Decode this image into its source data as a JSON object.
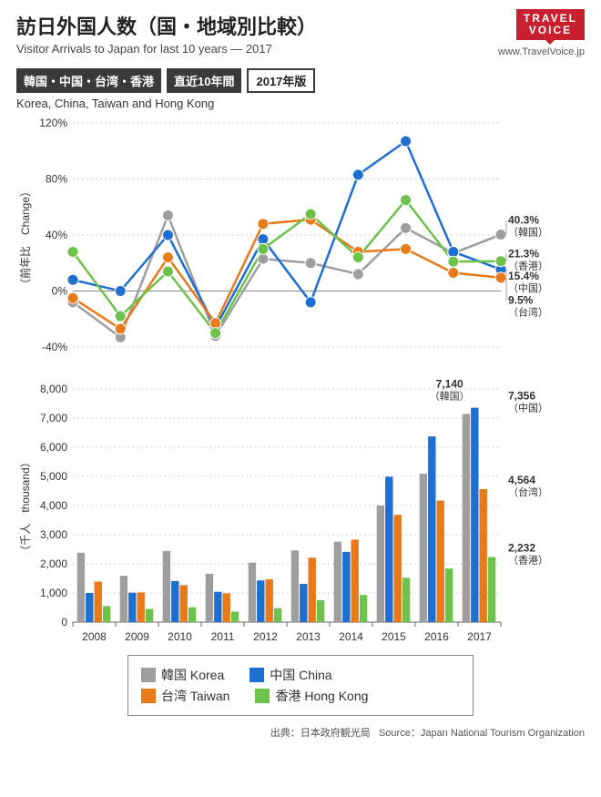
{
  "header": {
    "title_jp": "訪日外国人数（国・地域別比較）",
    "title_en": "Visitor Arrivals to Japan for last 10 years — 2017",
    "badge_regions": "韓国・中国・台湾・香港",
    "badge_period": "直近10年間",
    "badge_year": "2017年版",
    "subtitle_en": "Korea, China, Taiwan and Hong Kong",
    "logo_top": "TRAVEL",
    "logo_bottom": "VOICE",
    "logo_url": "www.TravelVoice.jp"
  },
  "colors": {
    "korea": "#9e9e9e",
    "china": "#1f6fd1",
    "taiwan": "#e87a1a",
    "hongkong": "#6cc24a",
    "grid": "#cccccc",
    "axis": "#666666",
    "text": "#333333",
    "logo": "#c8202f"
  },
  "line_chart": {
    "y_title": "（前年比　Change）",
    "ylim": [
      -40,
      120
    ],
    "ytick_step": 40,
    "years": [
      2008,
      2009,
      2010,
      2011,
      2012,
      2013,
      2014,
      2015,
      2016,
      2017
    ],
    "series": {
      "korea": [
        -8,
        -33,
        54,
        -32,
        23,
        20,
        12,
        45,
        27,
        40.3
      ],
      "china": [
        8,
        0,
        40,
        -26,
        37,
        -8,
        83,
        107,
        28,
        15.4
      ],
      "taiwan": [
        -5,
        -27,
        24,
        -23,
        48,
        51,
        28,
        30,
        13,
        9.5
      ],
      "hongkong": [
        28,
        -18,
        14,
        -30,
        30,
        55,
        24,
        65,
        21,
        21.3
      ]
    },
    "callouts": [
      {
        "label": "40.3%",
        "sub": "（韓国）",
        "y": 40.3
      },
      {
        "label": "21.3%",
        "sub": "（香港）",
        "y": 21.3
      },
      {
        "label": "15.4%",
        "sub": "（中国）",
        "y": 15.4
      },
      {
        "label": "9.5%",
        "sub": "（台湾）",
        "y": 9.5
      }
    ],
    "marker_radius": 6,
    "line_width": 2.5
  },
  "bar_chart": {
    "y_title": "（千人　thousand）",
    "ylim": [
      0,
      8000
    ],
    "ytick_step": 1000,
    "years": [
      2008,
      2009,
      2010,
      2011,
      2012,
      2013,
      2014,
      2015,
      2016,
      2017
    ],
    "series": {
      "korea": [
        2380,
        1590,
        2440,
        1660,
        2040,
        2460,
        2760,
        4000,
        5090,
        7140
      ],
      "china": [
        1000,
        1010,
        1410,
        1040,
        1430,
        1310,
        2410,
        4990,
        6370,
        7356
      ],
      "taiwan": [
        1390,
        1020,
        1270,
        990,
        1470,
        2210,
        2830,
        3680,
        4170,
        4564
      ],
      "hongkong": [
        550,
        450,
        510,
        360,
        480,
        750,
        930,
        1520,
        1840,
        2232
      ]
    },
    "callouts": [
      {
        "label": "7,140",
        "sub": "（韓国）",
        "x_year": 2016.6,
        "y": 7450
      },
      {
        "label": "7,356",
        "sub": "（中国）",
        "x_year": 2017.7,
        "y": 7450
      },
      {
        "label": "4,564",
        "sub": "（台湾）",
        "x_year": 2017.7,
        "y": 4564
      },
      {
        "label": "2,232",
        "sub": "（香港）",
        "x_year": 2017.7,
        "y": 2232
      }
    ],
    "bar_group_width": 0.8
  },
  "legend": {
    "items": [
      {
        "key": "korea",
        "label": "韓国 Korea"
      },
      {
        "key": "china",
        "label": "中国 China"
      },
      {
        "key": "taiwan",
        "label": "台湾 Taiwan"
      },
      {
        "key": "hongkong",
        "label": "香港 Hong Kong"
      }
    ]
  },
  "source": {
    "jp": "出典：日本政府観光局",
    "en": "Source：Japan National Tourism Organization"
  }
}
